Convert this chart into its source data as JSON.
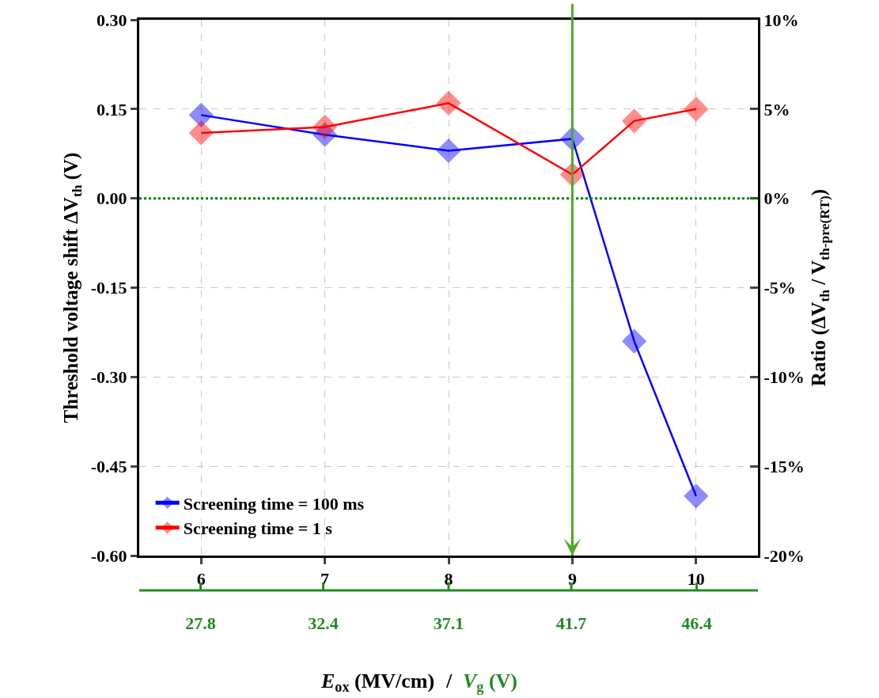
{
  "chart_data": {
    "type": "line",
    "x": [
      6,
      7,
      8,
      9,
      9.5,
      10
    ],
    "series": [
      {
        "name": "Screening time = 100 ms",
        "color": "#0000ff",
        "values": [
          0.14,
          0.107,
          0.08,
          0.1,
          -0.24,
          -0.5
        ]
      },
      {
        "name": "Screening time = 1 s",
        "color": "#ff0000",
        "values": [
          0.11,
          0.12,
          0.16,
          0.04,
          0.13,
          0.15
        ]
      }
    ],
    "xlabel": "E$_{ox}$ (MV/cm)",
    "x2label": "V$_{g}$ (V)",
    "ylabel": "Threshold voltage shift ΔV$_{th}$ (V)",
    "y2label": "Ratio (ΔV$_{th}$ / V$_{th-pre(RT)}$)",
    "xlim": [
      5.5,
      10.5
    ],
    "xticks": [
      6,
      7,
      8,
      9,
      10
    ],
    "x2lim": [
      25.5,
      48.7
    ],
    "x2ticks": [
      27.8,
      32.4,
      37.1,
      41.7,
      46.4
    ],
    "ylim": [
      -0.6,
      0.3
    ],
    "yticks": [
      {
        "value": -0.6,
        "label": "-0.60"
      },
      {
        "value": -0.45,
        "label": "-0.45"
      },
      {
        "value": -0.3,
        "label": "-0.30"
      },
      {
        "value": -0.15,
        "label": "-0.15"
      },
      {
        "value": 0,
        "label": "0.00"
      },
      {
        "value": 0.15,
        "label": "0.15"
      },
      {
        "value": 0.3,
        "label": "0.30"
      }
    ],
    "y2lim": [
      -20,
      10
    ],
    "y2ticks": [
      {
        "value": -20,
        "label": "-20%"
      },
      {
        "value": -15,
        "label": "-15%"
      },
      {
        "value": -10,
        "label": "-10%"
      },
      {
        "value": -5,
        "label": "-5%"
      },
      {
        "value": 0,
        "label": "0%"
      },
      {
        "value": 5,
        "label": "5%"
      },
      {
        "value": 10,
        "label": "10%"
      }
    ],
    "ref_lines": [
      {
        "axis": "y",
        "value": 0,
        "color": "#008000",
        "line_style": "dotted"
      },
      {
        "axis": "x",
        "value": 9,
        "color": "#4ea72e",
        "line_style": "solid"
      }
    ],
    "annotations": [
      "/"
    ],
    "grid": true,
    "legend": "bottom left",
    "marker": "diamond",
    "line_style": "solid"
  }
}
